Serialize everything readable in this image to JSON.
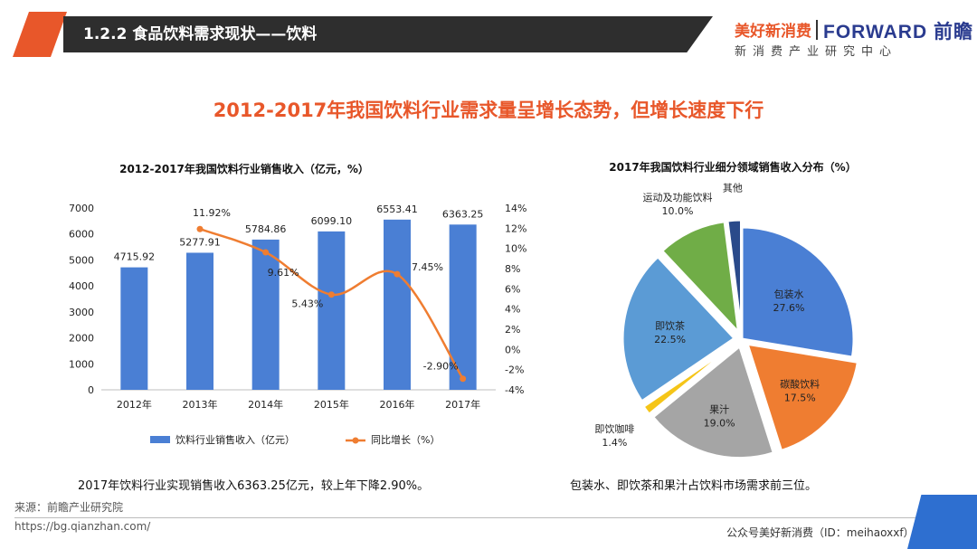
{
  "header": {
    "title": "1.2.2 食品饮料需求现状——饮料",
    "logo_cn": "美好新消费",
    "logo_en": "FORWARD 前瞻",
    "logo_sub": "新消费产业研究中心"
  },
  "slide_title": "2012-2017年我国饮料行业需求量呈增长态势，但增长速度下行",
  "chart_data": [
    {
      "type": "bar",
      "title": "2012-2017年我国饮料行业销售收入（亿元，%）",
      "categories": [
        "2012年",
        "2013年",
        "2014年",
        "2015年",
        "2016年",
        "2017年"
      ],
      "series": [
        {
          "name": "饮料行业销售收入（亿元）",
          "type": "bar",
          "color": "#4a7fd4",
          "values": [
            4715.92,
            5277.91,
            5784.86,
            6099.1,
            6553.41,
            6363.25
          ],
          "labels": [
            "4715.92",
            "5277.91",
            "5784.86",
            "6099.10",
            "6553.41",
            "6363.25"
          ]
        },
        {
          "name": "同比增长（%）",
          "type": "line",
          "color": "#ef7d31",
          "axis": "right",
          "values": [
            null,
            11.92,
            9.61,
            5.43,
            7.45,
            -2.9
          ],
          "labels": [
            "",
            "11.92%",
            "9.61%",
            "5.43%",
            "7.45%",
            "-2.90%"
          ]
        }
      ],
      "ylim": [
        0,
        7000
      ],
      "yticks": [
        "0",
        "1000",
        "2000",
        "3000",
        "4000",
        "5000",
        "6000",
        "7000"
      ],
      "y2lim": [
        -4,
        14
      ],
      "y2ticks": [
        "-4%",
        "-2%",
        "0%",
        "2%",
        "4%",
        "6%",
        "8%",
        "10%",
        "12%",
        "14%"
      ],
      "legend": "bottom"
    },
    {
      "type": "pie",
      "title": "2017年我国饮料行业细分领域销售收入分布（%）",
      "slices": [
        {
          "name": "包装水",
          "value": 27.6,
          "label": "27.6%",
          "color": "#4a7fd4",
          "exploded": false
        },
        {
          "name": "碳酸饮料",
          "value": 17.5,
          "label": "17.5%",
          "color": "#ef7d31",
          "exploded": true
        },
        {
          "name": "果汁",
          "value": 19.0,
          "label": "19.0%",
          "color": "#a5a5a5",
          "exploded": true
        },
        {
          "name": "即饮咖啡",
          "value": 1.4,
          "label": "1.4%",
          "color": "#f5c518",
          "exploded": true
        },
        {
          "name": "即饮茶",
          "value": 22.5,
          "label": "22.5%",
          "color": "#5b9bd5",
          "exploded": true
        },
        {
          "name": "运动及功能饮料",
          "value": 10.0,
          "label": "10.0%",
          "color": "#70ad47",
          "exploded": true
        },
        {
          "name": "其他",
          "value": 2.0,
          "label": "",
          "color": "#2a4a8a",
          "exploded": true
        }
      ]
    }
  ],
  "captions": {
    "left": "2017年饮料行业实现销售收入6363.25亿元，较上年下降2.90%。",
    "right": "包装水、即饮茶和果汁占饮料市场需求前三位。"
  },
  "footer": {
    "source": "来源：前瞻产业研究院",
    "url": "https://bg.qianzhan.com/",
    "wechat": "公众号美好新消费（ID：meihaoxxf）"
  }
}
